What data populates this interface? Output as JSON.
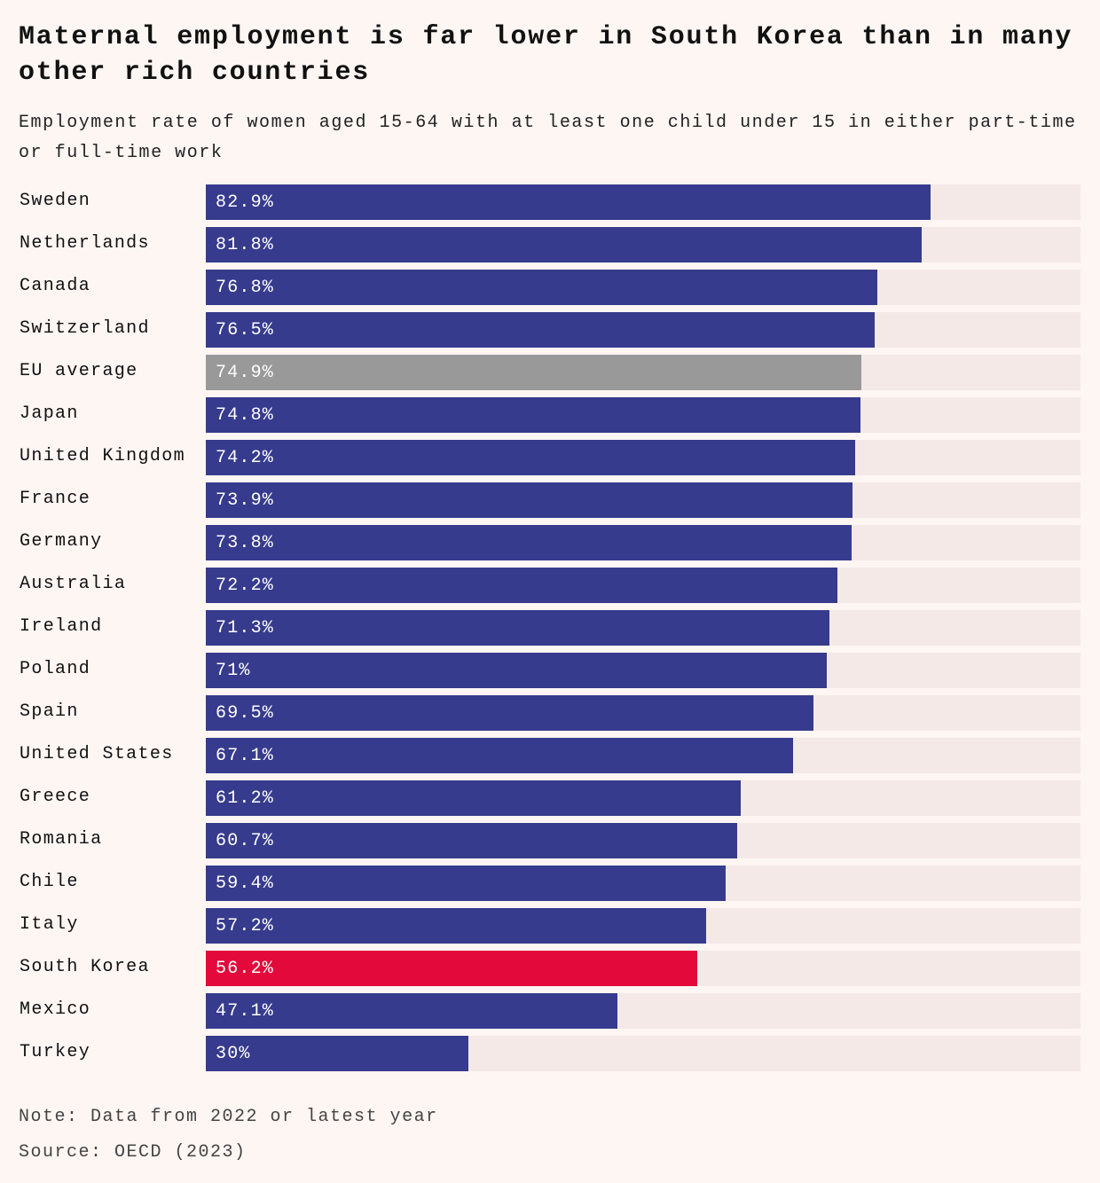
{
  "chart_data": {
    "type": "bar",
    "orientation": "horizontal",
    "title": "Maternal employment is far lower in South Korea than in many other rich countries",
    "subtitle": "Employment rate of women aged 15-64 with at least one child under 15 in either part-time or full-time work",
    "xlim": [
      0,
      100
    ],
    "categories": [
      "Sweden",
      "Netherlands",
      "Canada",
      "Switzerland",
      "EU average",
      "Japan",
      "United Kingdom",
      "France",
      "Germany",
      "Australia",
      "Ireland",
      "Poland",
      "Spain",
      "United States",
      "Greece",
      "Romania",
      "Chile",
      "Italy",
      "South Korea",
      "Mexico",
      "Turkey"
    ],
    "values": [
      82.9,
      81.8,
      76.8,
      76.5,
      74.9,
      74.8,
      74.2,
      73.9,
      73.8,
      72.2,
      71.3,
      71,
      69.5,
      67.1,
      61.2,
      60.7,
      59.4,
      57.2,
      56.2,
      47.1,
      30
    ],
    "value_labels": [
      "82.9%",
      "81.8%",
      "76.8%",
      "76.5%",
      "74.9%",
      "74.8%",
      "74.2%",
      "73.9%",
      "73.8%",
      "72.2%",
      "71.3%",
      "71%",
      "69.5%",
      "67.1%",
      "61.2%",
      "60.7%",
      "59.4%",
      "57.2%",
      "56.2%",
      "47.1%",
      "30%"
    ],
    "highlight": {
      "EU average": "#999999",
      "South Korea": "#e30a3b"
    },
    "default_color": "#373b8d",
    "track_color": "#f4e9e7",
    "note": "Note: Data from 2022 or latest year",
    "source": "Source: OECD (2023)"
  }
}
